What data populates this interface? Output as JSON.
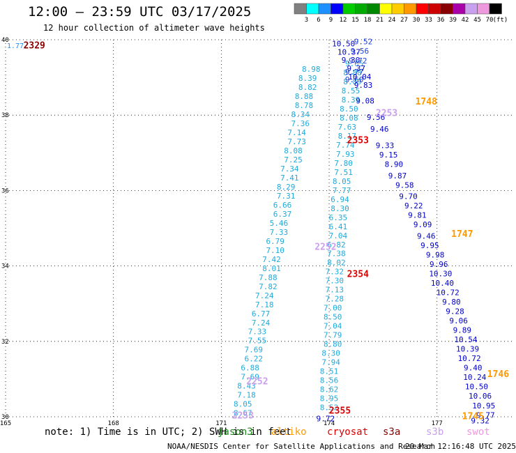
{
  "header": {
    "title": "12:00 – 23:59 UTC 03/17/2025",
    "subtitle": "12 hour collection of altimeter wave heights"
  },
  "footer": {
    "note": "note: 1) Time is in UTC; 2) SWH is in feet",
    "credit": "NOAA/NESDIS Center for Satellite Applications and Research",
    "generated": "20 Mar 12:16:48 UTC 2025"
  },
  "satellites": [
    {
      "name": "jason3",
      "color": "#1a8a1a"
    },
    {
      "name": "altiko",
      "color": "#ff9900"
    },
    {
      "name": "cryosat",
      "color": "#dd0000"
    },
    {
      "name": "s3a",
      "color": "#880000"
    },
    {
      "name": "s3b",
      "color": "#c8a0ee"
    },
    {
      "name": "swot",
      "color": "#ee99dd"
    }
  ],
  "color_scale": {
    "unit": "(ft)",
    "colors": [
      "#808080",
      "#00ffff",
      "#1e90ff",
      "#0000ff",
      "#00cc00",
      "#00aa00",
      "#008800",
      "#ffff00",
      "#ffcc00",
      "#ff9900",
      "#ff0000",
      "#cc0000",
      "#880000",
      "#aa00aa",
      "#c8a0ee",
      "#ee99dd",
      "#000000"
    ],
    "labels": [
      "3",
      "6",
      "9",
      "12",
      "15",
      "18",
      "21",
      "24",
      "27",
      "30",
      "33",
      "36",
      "39",
      "42",
      "45",
      "70"
    ]
  },
  "chart_data": {
    "type": "scatter",
    "title": "12:00 – 23:59 UTC 03/17/2025",
    "subtitle": "12 hour collection of altimeter wave heights",
    "x_ticks": [
      "165",
      "168",
      "171",
      "174",
      "177"
    ],
    "y_ticks": [
      "40",
      "38",
      "36",
      "34",
      "32",
      "30"
    ],
    "xlim": [
      165,
      179.1
    ],
    "ylim": [
      30,
      40
    ],
    "grid": true,
    "track_labels": [
      {
        "text": "2329",
        "lon": 165.8,
        "lat": 39.86,
        "color": "#880000"
      },
      {
        "text": "1748",
        "lon": 176.7,
        "lat": 38.37,
        "color": "#ff9900"
      },
      {
        "text": "2353",
        "lon": 174.8,
        "lat": 37.35,
        "color": "#dd0000"
      },
      {
        "text": "1747",
        "lon": 177.7,
        "lat": 34.86,
        "color": "#ff9900"
      },
      {
        "text": "2354",
        "lon": 174.8,
        "lat": 33.8,
        "color": "#dd0000"
      },
      {
        "text": "1746",
        "lon": 178.7,
        "lat": 31.15,
        "color": "#ff9900"
      },
      {
        "text": "1745",
        "lon": 178.0,
        "lat": 30.03,
        "color": "#ff9900"
      },
      {
        "text": "2355",
        "lon": 174.3,
        "lat": 30.18,
        "color": "#dd0000"
      },
      {
        "text": "2252",
        "lon": 172.0,
        "lat": 30.95,
        "color": "#c8a0ee"
      },
      {
        "text": "2253",
        "lon": 171.6,
        "lat": 30.05,
        "color": "#c8a0ee"
      },
      {
        "text": "2252",
        "lon": 173.9,
        "lat": 34.52,
        "color": "#c8a0ee"
      },
      {
        "text": "2253",
        "lon": 175.6,
        "lat": 38.07,
        "color": "#c8a0ee"
      }
    ],
    "series": [
      {
        "name": "track-cyan-west",
        "color": "#1eaadd",
        "points": [
          {
            "lon": 171.6,
            "lat": 30.1,
            "v": "8.67"
          },
          {
            "lon": 171.6,
            "lat": 30.34,
            "v": "8.05"
          },
          {
            "lon": 171.7,
            "lat": 30.58,
            "v": "7.18"
          },
          {
            "lon": 171.7,
            "lat": 30.82,
            "v": "8.43"
          },
          {
            "lon": 171.8,
            "lat": 31.06,
            "v": "7.69"
          },
          {
            "lon": 171.8,
            "lat": 31.3,
            "v": "6.88"
          },
          {
            "lon": 171.9,
            "lat": 31.54,
            "v": "6.22"
          },
          {
            "lon": 171.9,
            "lat": 31.78,
            "v": "7.69"
          },
          {
            "lon": 172.0,
            "lat": 32.02,
            "v": "7.55"
          },
          {
            "lon": 172.0,
            "lat": 32.26,
            "v": "7.33"
          },
          {
            "lon": 172.1,
            "lat": 32.5,
            "v": "7.24"
          },
          {
            "lon": 172.1,
            "lat": 32.74,
            "v": "6.77"
          },
          {
            "lon": 172.2,
            "lat": 32.98,
            "v": "7.18"
          },
          {
            "lon": 172.2,
            "lat": 33.22,
            "v": "7.24"
          },
          {
            "lon": 172.3,
            "lat": 33.46,
            "v": "7.82"
          },
          {
            "lon": 172.3,
            "lat": 33.7,
            "v": "7.88"
          },
          {
            "lon": 172.4,
            "lat": 33.94,
            "v": "8.01"
          },
          {
            "lon": 172.4,
            "lat": 34.18,
            "v": "7.42"
          },
          {
            "lon": 172.5,
            "lat": 34.42,
            "v": "7.10"
          },
          {
            "lon": 172.5,
            "lat": 34.66,
            "v": "6.79"
          },
          {
            "lon": 172.6,
            "lat": 34.9,
            "v": "7.33"
          },
          {
            "lon": 172.6,
            "lat": 35.14,
            "v": "5.46"
          },
          {
            "lon": 172.7,
            "lat": 35.38,
            "v": "6.37"
          },
          {
            "lon": 172.7,
            "lat": 35.62,
            "v": "6.66"
          },
          {
            "lon": 172.8,
            "lat": 35.86,
            "v": "7.31"
          },
          {
            "lon": 172.8,
            "lat": 36.1,
            "v": "8.29"
          },
          {
            "lon": 172.9,
            "lat": 36.34,
            "v": "7.41"
          },
          {
            "lon": 172.9,
            "lat": 36.58,
            "v": "7.34"
          },
          {
            "lon": 173.0,
            "lat": 36.82,
            "v": "7.25"
          },
          {
            "lon": 173.0,
            "lat": 37.06,
            "v": "8.08"
          },
          {
            "lon": 173.1,
            "lat": 37.3,
            "v": "7.73"
          },
          {
            "lon": 173.1,
            "lat": 37.54,
            "v": "7.14"
          },
          {
            "lon": 173.2,
            "lat": 37.78,
            "v": "7.36"
          },
          {
            "lon": 173.2,
            "lat": 38.02,
            "v": "8.34"
          },
          {
            "lon": 173.3,
            "lat": 38.26,
            "v": "8.78"
          },
          {
            "lon": 173.3,
            "lat": 38.5,
            "v": "8.88"
          },
          {
            "lon": 173.4,
            "lat": 38.74,
            "v": "8.82"
          },
          {
            "lon": 173.4,
            "lat": 38.98,
            "v": "8.39"
          },
          {
            "lon": 173.5,
            "lat": 39.22,
            "v": "8.98"
          }
        ]
      },
      {
        "name": "track-cyan-east",
        "color": "#1eaadd",
        "points": [
          {
            "lon": 174.0,
            "lat": 30.25,
            "v": "8.52"
          },
          {
            "lon": 174.0,
            "lat": 30.49,
            "v": "8.95"
          },
          {
            "lon": 174.0,
            "lat": 30.73,
            "v": "8.62"
          },
          {
            "lon": 174.0,
            "lat": 30.97,
            "v": "8.56"
          },
          {
            "lon": 174.0,
            "lat": 31.21,
            "v": "8.51"
          },
          {
            "lon": 174.05,
            "lat": 31.45,
            "v": "7.94"
          },
          {
            "lon": 174.05,
            "lat": 31.69,
            "v": "8.30"
          },
          {
            "lon": 174.1,
            "lat": 31.93,
            "v": "8.80"
          },
          {
            "lon": 174.1,
            "lat": 32.17,
            "v": "7.79"
          },
          {
            "lon": 174.1,
            "lat": 32.41,
            "v": "7.04"
          },
          {
            "lon": 174.1,
            "lat": 32.65,
            "v": "8.50"
          },
          {
            "lon": 174.1,
            "lat": 32.89,
            "v": "7.00"
          },
          {
            "lon": 174.15,
            "lat": 33.13,
            "v": "7.28"
          },
          {
            "lon": 174.15,
            "lat": 33.37,
            "v": "7.13"
          },
          {
            "lon": 174.15,
            "lat": 33.61,
            "v": "7.30"
          },
          {
            "lon": 174.15,
            "lat": 33.85,
            "v": "7.32"
          },
          {
            "lon": 174.2,
            "lat": 34.09,
            "v": "8.02"
          },
          {
            "lon": 174.2,
            "lat": 34.33,
            "v": "7.38"
          },
          {
            "lon": 174.2,
            "lat": 34.57,
            "v": "6.82"
          },
          {
            "lon": 174.25,
            "lat": 34.81,
            "v": "7.04"
          },
          {
            "lon": 174.25,
            "lat": 35.05,
            "v": "6.41"
          },
          {
            "lon": 174.25,
            "lat": 35.29,
            "v": "6.35"
          },
          {
            "lon": 174.3,
            "lat": 35.53,
            "v": "8.30"
          },
          {
            "lon": 174.3,
            "lat": 35.77,
            "v": "6.94"
          },
          {
            "lon": 174.35,
            "lat": 36.01,
            "v": "7.77"
          },
          {
            "lon": 174.35,
            "lat": 36.25,
            "v": "8.05"
          },
          {
            "lon": 174.4,
            "lat": 36.49,
            "v": "7.51"
          },
          {
            "lon": 174.4,
            "lat": 36.73,
            "v": "7.80"
          },
          {
            "lon": 174.45,
            "lat": 36.97,
            "v": "7.93"
          },
          {
            "lon": 174.45,
            "lat": 37.21,
            "v": "7.74"
          },
          {
            "lon": 174.5,
            "lat": 37.45,
            "v": "8.17"
          },
          {
            "lon": 174.5,
            "lat": 37.69,
            "v": "7.63"
          },
          {
            "lon": 174.55,
            "lat": 37.93,
            "v": "8.08"
          },
          {
            "lon": 174.55,
            "lat": 38.17,
            "v": "8.50"
          },
          {
            "lon": 174.6,
            "lat": 38.41,
            "v": "8.39"
          },
          {
            "lon": 174.6,
            "lat": 38.65,
            "v": "8.55"
          },
          {
            "lon": 174.65,
            "lat": 38.89,
            "v": "8.89"
          },
          {
            "lon": 174.65,
            "lat": 39.13,
            "v": "8.88"
          },
          {
            "lon": 174.7,
            "lat": 39.37,
            "v": "9.05"
          }
        ]
      },
      {
        "name": "track-blue",
        "color": "#0000cc",
        "points": [
          {
            "lon": 174.4,
            "lat": 39.9,
            "v": "10.50"
          },
          {
            "lon": 174.55,
            "lat": 39.68,
            "v": "10.37"
          },
          {
            "lon": 174.6,
            "lat": 39.46,
            "v": "9.30"
          },
          {
            "lon": 174.75,
            "lat": 39.24,
            "v": "9.37"
          },
          {
            "lon": 174.85,
            "lat": 39.02,
            "v": "10.04"
          },
          {
            "lon": 174.95,
            "lat": 38.8,
            "v": "9.83"
          },
          {
            "lon": 175.0,
            "lat": 38.38,
            "v": "9.08"
          },
          {
            "lon": 175.3,
            "lat": 37.95,
            "v": "9.56"
          },
          {
            "lon": 175.4,
            "lat": 37.63,
            "v": "9.46"
          },
          {
            "lon": 175.55,
            "lat": 37.2,
            "v": "9.33"
          },
          {
            "lon": 175.65,
            "lat": 36.95,
            "v": "9.15"
          },
          {
            "lon": 175.8,
            "lat": 36.7,
            "v": "8.90"
          },
          {
            "lon": 175.9,
            "lat": 36.4,
            "v": "9.87"
          },
          {
            "lon": 176.1,
            "lat": 36.15,
            "v": "9.58"
          },
          {
            "lon": 176.2,
            "lat": 35.85,
            "v": "9.70"
          },
          {
            "lon": 176.35,
            "lat": 35.6,
            "v": "9.22"
          },
          {
            "lon": 176.45,
            "lat": 35.35,
            "v": "9.81"
          },
          {
            "lon": 176.6,
            "lat": 35.1,
            "v": "9.09"
          },
          {
            "lon": 176.7,
            "lat": 34.8,
            "v": "9.46"
          },
          {
            "lon": 176.8,
            "lat": 34.55,
            "v": "9.95"
          },
          {
            "lon": 176.95,
            "lat": 34.3,
            "v": "9.98"
          },
          {
            "lon": 177.05,
            "lat": 34.05,
            "v": "9.96"
          },
          {
            "lon": 177.1,
            "lat": 33.8,
            "v": "10.30"
          },
          {
            "lon": 177.15,
            "lat": 33.55,
            "v": "10.40"
          },
          {
            "lon": 177.3,
            "lat": 33.3,
            "v": "10.72"
          },
          {
            "lon": 177.4,
            "lat": 33.05,
            "v": "9.80"
          },
          {
            "lon": 177.5,
            "lat": 32.8,
            "v": "9.28"
          },
          {
            "lon": 177.6,
            "lat": 32.55,
            "v": "9.06"
          },
          {
            "lon": 177.7,
            "lat": 32.3,
            "v": "9.89"
          },
          {
            "lon": 177.8,
            "lat": 32.05,
            "v": "10.54"
          },
          {
            "lon": 177.85,
            "lat": 31.8,
            "v": "10.39"
          },
          {
            "lon": 177.9,
            "lat": 31.55,
            "v": "10.72"
          },
          {
            "lon": 178.0,
            "lat": 31.3,
            "v": "9.40"
          },
          {
            "lon": 178.05,
            "lat": 31.05,
            "v": "10.24"
          },
          {
            "lon": 178.1,
            "lat": 30.8,
            "v": "10.50"
          },
          {
            "lon": 178.2,
            "lat": 30.55,
            "v": "10.06"
          },
          {
            "lon": 178.3,
            "lat": 30.3,
            "v": "10.95"
          },
          {
            "lon": 178.35,
            "lat": 30.05,
            "v": "9.77"
          },
          {
            "lon": 178.2,
            "lat": 29.9,
            "v": "9.32"
          },
          {
            "lon": 173.9,
            "lat": 29.95,
            "v": "9.72"
          }
        ]
      },
      {
        "name": "track-blue-top",
        "color": "#2040dd",
        "points": [
          {
            "lon": 174.95,
            "lat": 39.95,
            "v": "9.52"
          },
          {
            "lon": 174.85,
            "lat": 39.7,
            "v": "9.56"
          },
          {
            "lon": 174.8,
            "lat": 39.45,
            "v": "9.72"
          },
          {
            "lon": 174.7,
            "lat": 39.15,
            "v": "9.77"
          },
          {
            "lon": 174.7,
            "lat": 38.95,
            "v": "9.60"
          }
        ]
      }
    ]
  }
}
